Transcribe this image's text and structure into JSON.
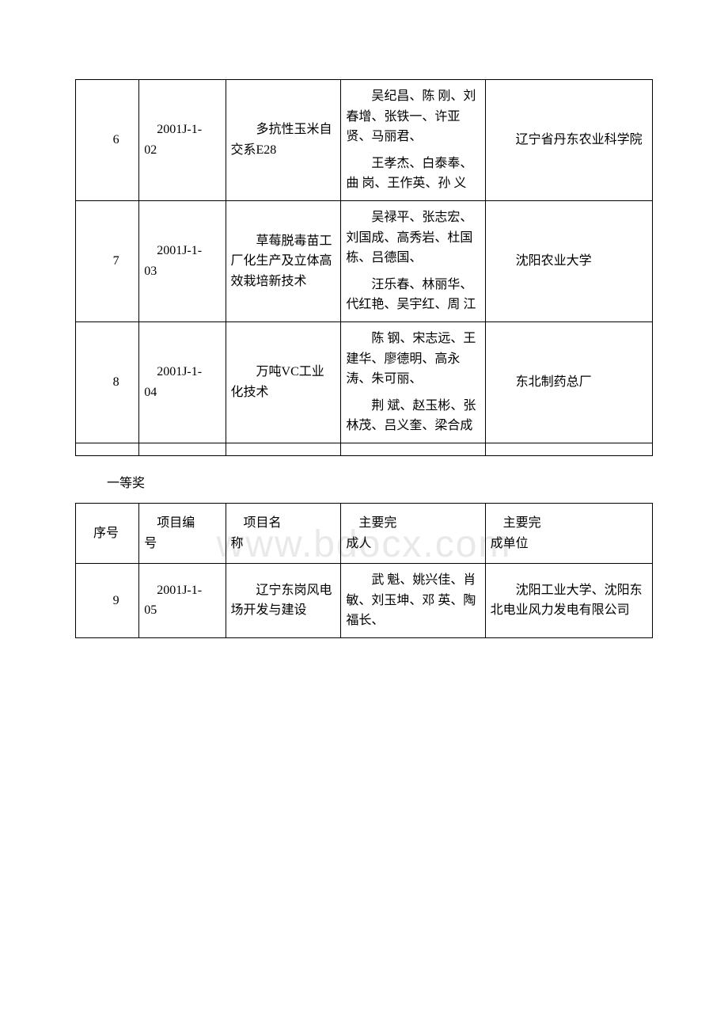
{
  "watermark": "www.bdocx.com",
  "table1": {
    "rows": [
      {
        "seq": "6",
        "code": "2001J-1-02",
        "name": "多抗性玉米自交系E28",
        "people": "吴纪昌、陈 刚、刘春增、张铁一、许亚贤、马丽君、",
        "people2": "王孝杰、白泰奉、曲 岗、王作英、孙 义",
        "org": "辽宁省丹东农业科学院"
      },
      {
        "seq": "7",
        "code": "2001J-1-03",
        "name": "草莓脱毒苗工厂化生产及立体高效栽培新技术",
        "people": "吴禄平、张志宏、刘国成、高秀岩、杜国栋、吕德国、",
        "people2": "汪乐春、林丽华、代红艳、吴宇红、周 江",
        "org": "沈阳农业大学"
      },
      {
        "seq": "8",
        "code": "2001J-1-04",
        "name": "万吨VC工业化技术",
        "people": "陈 钢、宋志远、王建华、廖德明、高永涛、朱可丽、",
        "people2": "荆 斌、赵玉彬、张林茂、吕义奎、梁合成",
        "org": "东北制药总厂"
      }
    ]
  },
  "subtitle": "一等奖",
  "table2": {
    "headers": {
      "seq": "序号",
      "code": "项目编号",
      "name": "项目名称",
      "people": "主要完成人",
      "org": "主要完成单位"
    },
    "rows": [
      {
        "seq": "9",
        "code": "2001J-1-05",
        "name": "辽宁东岗风电场开发与建设",
        "people": "武 魁、姚兴佳、肖 敏、刘玉坤、邓 英、陶福长、",
        "org": "沈阳工业大学、沈阳东北电业风力发电有限公司"
      }
    ]
  }
}
